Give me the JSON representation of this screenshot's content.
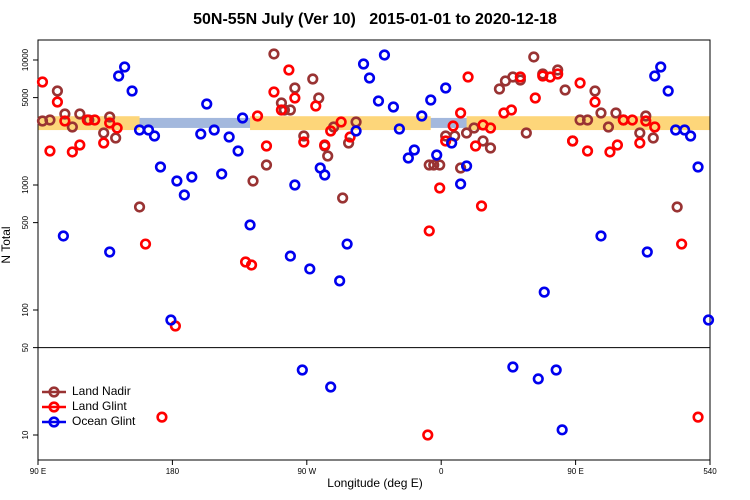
{
  "chart_data": {
    "type": "scatter",
    "title": "50N-55N July (Ver 10)   2015-01-01 to 2020-12-18",
    "x_label": "Longitude (deg E)",
    "y_label": "N Total",
    "log_y": true,
    "legend": "lower left",
    "xlim": [
      90,
      540
    ],
    "ylim": [
      6.31,
      14450
    ],
    "xticks": [
      {
        "value": 90,
        "label": "90 E"
      },
      180,
      {
        "value": 270,
        "label": "90 W"
      },
      {
        "value": 360,
        "label": "0"
      },
      {
        "value": 450,
        "label": "90 E"
      },
      540
    ],
    "yticks": [
      10,
      50,
      100,
      500,
      1000,
      5000,
      10000
    ],
    "hline": 50,
    "bands": [
      {
        "color": "#a3b8dd",
        "xlim": [
          90,
          540
        ],
        "ylim": [
          2860,
          3440
        ]
      },
      {
        "color": "#fdd67a",
        "xlim": [
          90,
          158
        ],
        "ylim": [
          2750,
          3550
        ]
      },
      {
        "color": "#fdd67a",
        "xlim": [
          232,
          353
        ],
        "ylim": [
          2750,
          3550
        ]
      },
      {
        "color": "#fdd67a",
        "xlim": [
          377,
          540
        ],
        "ylim": [
          2750,
          3550
        ]
      }
    ],
    "series": [
      {
        "name": "Land Nadir",
        "color": "#993333",
        "x": [
          93,
          98,
          103,
          108,
          113,
          118,
          124,
          134,
          138,
          142,
          158,
          234,
          243,
          248,
          253,
          255,
          259,
          262,
          268,
          274,
          278,
          282,
          284,
          288,
          294,
          298,
          303,
          352,
          355,
          359,
          363,
          369,
          373,
          377,
          382,
          388,
          393,
          399,
          403,
          408,
          413,
          417,
          422,
          428,
          438,
          443,
          448,
          453,
          458,
          463,
          467,
          472,
          477,
          482,
          493,
          497,
          502,
          518
        ],
        "values": [
          3251,
          3311,
          5649,
          3698,
          2911,
          3698,
          3311,
          2606,
          3499,
          2377,
          667,
          1076,
          1445,
          11170,
          4529,
          3981,
          3981,
          5970,
          2466,
          7047,
          4966,
          2051,
          1706,
          2911,
          787,
          2168,
          3192,
          1445,
          1445,
          1445,
          2466,
          2466,
          1368,
          2606,
          2858,
          2249,
          1977,
          5861,
          6792,
          7311,
          6918,
          2606,
          10570,
          7727,
          8318,
          5754,
          2249,
          3311,
          3311,
          5649,
          3767,
          2911,
          3767,
          3311,
          2606,
          3565,
          2377,
          667
        ]
      },
      {
        "name": "Land Glint",
        "color": "#ff0000",
        "x": [
          93,
          98,
          103,
          108,
          113,
          118,
          123,
          128,
          134,
          138,
          143,
          162,
          173,
          182,
          229,
          233,
          237,
          243,
          248,
          253,
          258,
          262,
          268,
          276,
          282,
          286,
          293,
          299,
          351,
          352,
          359,
          363,
          368,
          373,
          378,
          383,
          387,
          388,
          393,
          402,
          407,
          413,
          423,
          428,
          433,
          438,
          448,
          453,
          458,
          463,
          473,
          478,
          482,
          488,
          493,
          497,
          503,
          521,
          532
        ],
        "values": [
          6668,
          1871,
          4613,
          3251,
          1837,
          2089,
          3311,
          3311,
          2168,
          3133,
          2858,
          337,
          13.9,
          74.5,
          242,
          229,
          3565,
          2051,
          5546,
          3981,
          8318,
          4966,
          2208,
          4285,
          2089,
          2704,
          3192,
          2421,
          10,
          429,
          946,
          2249,
          2965,
          3767,
          7311,
          2051,
          679,
          3020,
          2858,
          3767,
          3981,
          7311,
          4966,
          7447,
          7311,
          7727,
          2249,
          6546,
          1871,
          4613,
          1837,
          2089,
          3311,
          3311,
          2168,
          3251,
          2911,
          337,
          13.9
        ]
      },
      {
        "name": "Ocean Glint",
        "color": "#0000ee",
        "x": [
          107,
          138,
          144,
          148,
          153,
          158,
          164,
          168,
          172,
          179,
          183,
          188,
          193,
          199,
          203,
          208,
          213,
          218,
          224,
          227,
          232,
          259,
          262,
          267,
          272,
          279,
          282,
          286,
          292,
          297,
          303,
          308,
          312,
          318,
          322,
          328,
          332,
          338,
          342,
          347,
          353,
          357,
          363,
          367,
          373,
          377,
          408,
          425,
          429,
          437,
          441,
          467,
          498,
          503,
          507,
          512,
          517,
          523,
          527,
          532,
          539
        ],
        "values": [
          391,
          291,
          7447,
          8790,
          5649,
          2754,
          2754,
          2466,
          1393,
          83.2,
          1076,
          832,
          1159,
          2559,
          4446,
          2754,
          1225,
          2421,
          1871,
          3436,
          479,
          270,
          1000,
          33.1,
          213,
          1368,
          1202,
          24.2,
          171,
          337,
          2704,
          9290,
          7178,
          4699,
          10965,
          4207,
          2805,
          1644,
          1905,
          3565,
          4786,
          1738,
          5970,
          2168,
          1019,
          1419,
          35,
          28.1,
          139,
          33.1,
          11,
          391,
          291,
          7447,
          8790,
          5649,
          2754,
          2754,
          2466,
          1393,
          83.2
        ]
      }
    ]
  }
}
